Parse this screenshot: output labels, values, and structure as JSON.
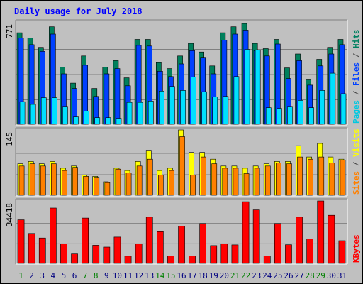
{
  "chart_data": {
    "type": "bar",
    "title": "Daily usage for July 2018",
    "days": [
      "1",
      "2",
      "3",
      "4",
      "5",
      "6",
      "7",
      "8",
      "9",
      "10",
      "11",
      "12",
      "13",
      "14",
      "15",
      "16",
      "17",
      "18",
      "19",
      "20",
      "21",
      "22",
      "23",
      "24",
      "25",
      "26",
      "27",
      "28",
      "29",
      "30",
      "31"
    ],
    "weekend_days": [
      1,
      7,
      8,
      14,
      15,
      21,
      22,
      28,
      29
    ],
    "panels": [
      {
        "name": "hits-files-pages",
        "ymax_label": "771",
        "ymax": 771,
        "legend": [
          {
            "text": "Pages",
            "color": "#00C8E0"
          },
          {
            "text": " / ",
            "color": "#404040"
          },
          {
            "text": "Files",
            "color": "#0040FF"
          },
          {
            "text": " / ",
            "color": "#404040"
          },
          {
            "text": "Hits",
            "color": "#008060"
          }
        ],
        "series": [
          {
            "name": "Hits",
            "color": "#00805C",
            "values": [
              690,
              650,
              580,
              735,
              430,
              310,
              515,
              270,
              430,
              480,
              350,
              640,
              640,
              465,
              420,
              515,
              610,
              545,
              440,
              690,
              735,
              760,
              610,
              570,
              640,
              425,
              530,
              340,
              490,
              580,
              640
            ]
          },
          {
            "name": "Files",
            "color": "#0040FF",
            "values": [
              650,
              600,
              550,
              680,
              380,
              270,
              445,
              210,
              380,
              420,
              290,
              595,
              590,
              400,
              360,
              455,
              555,
              505,
              380,
              635,
              680,
              710,
              555,
              515,
              605,
              345,
              480,
              295,
              440,
              530,
              600
            ]
          },
          {
            "name": "Pages",
            "color": "#00E0FF",
            "values": [
              170,
              150,
              200,
              200,
              135,
              55,
              100,
              50,
              50,
              45,
              165,
              165,
              175,
              250,
              285,
              255,
              355,
              245,
              205,
              210,
              360,
              565,
              560,
              125,
              120,
              135,
              180,
              125,
              255,
              385,
              230
            ]
          }
        ]
      },
      {
        "name": "visits-sites",
        "ymax_label": "145",
        "ymax": 145,
        "legend": [
          {
            "text": "Sites",
            "color": "#FF8000"
          },
          {
            "text": " / ",
            "color": "#404040"
          },
          {
            "text": "Visits",
            "color": "#FFFF00"
          }
        ],
        "series": [
          {
            "name": "Visits",
            "color": "#FFFF00",
            "values": [
              70,
              75,
              70,
              75,
              60,
              65,
              45,
              42,
              30,
              60,
              55,
              75,
              100,
              55,
              60,
              145,
              95,
              95,
              80,
              65,
              65,
              60,
              65,
              70,
              75,
              75,
              110,
              85,
              115,
              85,
              80
            ]
          },
          {
            "name": "Sites",
            "color": "#FF8000",
            "values": [
              65,
              70,
              65,
              70,
              55,
              62,
              42,
              40,
              28,
              58,
              50,
              65,
              80,
              45,
              55,
              130,
              45,
              85,
              70,
              60,
              60,
              48,
              60,
              65,
              72,
              70,
              85,
              80,
              85,
              72,
              78
            ]
          }
        ]
      },
      {
        "name": "kbytes",
        "ymax_label": "34418",
        "ymax": 34418,
        "legend": [
          {
            "text": "KBytes",
            "color": "#FF0000"
          }
        ],
        "series": [
          {
            "name": "KBytes",
            "color": "#FF0000",
            "values": [
              24000,
              16500,
              14000,
              30500,
              10800,
              5200,
              25000,
              10000,
              9000,
              14500,
              4000,
              10800,
              25500,
              17500,
              4100,
              20500,
              4200,
              22000,
              9800,
              10800,
              10200,
              34000,
              29500,
              4200,
              22000,
              10300,
              25500,
              13500,
              34418,
              26500,
              12500
            ]
          }
        ]
      }
    ]
  },
  "colors": {
    "background": "#C0C0C0",
    "title": "#0000FF",
    "weekday_label": "#008000",
    "weekend_label": "#00008B",
    "grid": "#808080"
  }
}
